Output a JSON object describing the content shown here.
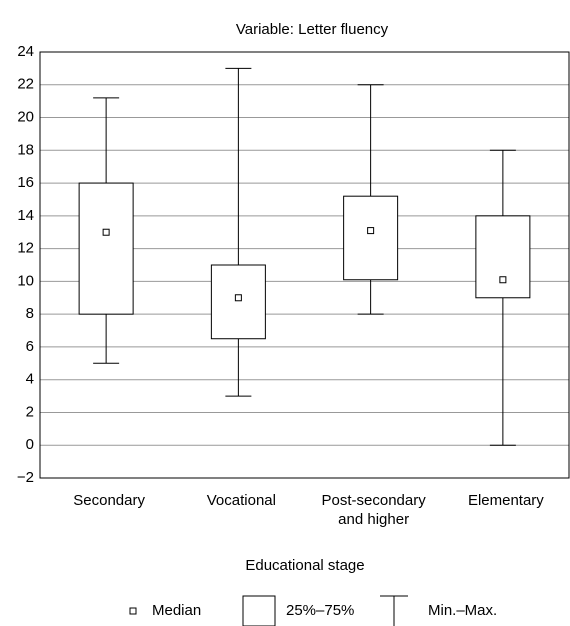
{
  "chart_data": {
    "type": "box",
    "title": "Variable: Letter fluency",
    "x_label": "Educational stage",
    "categories": [
      "Secondary",
      "Vocational",
      "Post-secondary and higher",
      "Elementary"
    ],
    "boxes": [
      {
        "min": 5,
        "q1": 8,
        "median": 13,
        "q3": 16,
        "max": 21.2
      },
      {
        "min": 3,
        "q1": 6.5,
        "median": 9,
        "q3": 11,
        "max": 23
      },
      {
        "min": 8,
        "q1": 10.1,
        "median": 13.1,
        "q3": 15.2,
        "max": 22
      },
      {
        "min": 0,
        "q1": 9,
        "median": 10.1,
        "q3": 14,
        "max": 18
      }
    ],
    "ylim": [
      -2,
      24
    ],
    "yticks": [
      {
        "value": -2,
        "label": "−2"
      },
      0,
      2,
      4,
      6,
      8,
      10,
      12,
      14,
      16,
      18,
      20,
      22,
      24
    ],
    "grid": true,
    "legend": {
      "median": "Median",
      "box": "25%–75%",
      "whisker": "Min.–Max."
    },
    "color": "#000000"
  }
}
